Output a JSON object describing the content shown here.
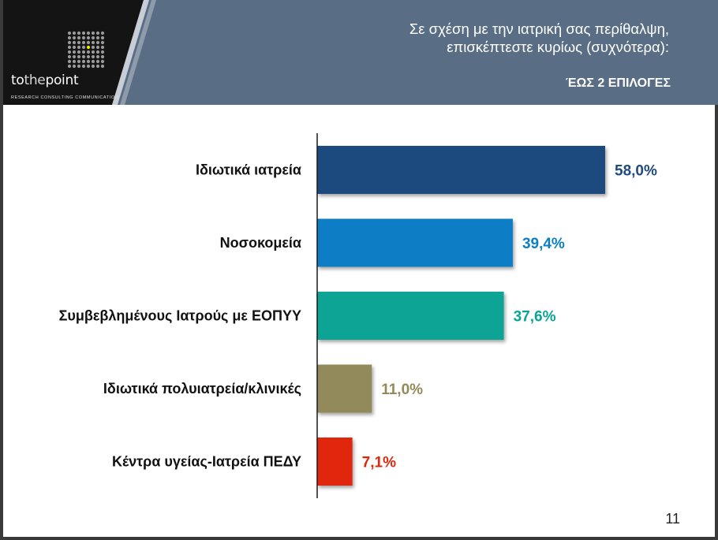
{
  "header": {
    "title_line1": "Σε σχέση με την ιατρική σας περίθαλψη,",
    "title_line2": "επισκέπτεστε κυρίως (συχνότερα):",
    "note": "ΈΩΣ 2 ΕΠΙΛΟΓΕΣ"
  },
  "logo": {
    "part1": "to",
    "part2": "the",
    "part3": "point",
    "tagline": "RESEARCH  CONSULTING  COMMUNICATION"
  },
  "colors": {
    "header_bg": "#596d85",
    "accent_dot": "#f2e600"
  },
  "chart_data": {
    "type": "bar",
    "orientation": "horizontal",
    "categories": [
      "Ιδιωτικά ιατρεία",
      "Νοσοκομεία",
      "Συμβεβλημένους Ιατρούς με ΕΟΠΥΥ",
      "Ιδιωτικά πολυιατρεία/κλινικές",
      "Κέντρα υγείας-Ιατρεία ΠΕΔΥ"
    ],
    "values": [
      58.0,
      39.4,
      37.6,
      11.0,
      7.1
    ],
    "value_labels": [
      "58,0%",
      "39,4%",
      "37,6%",
      "11,0%",
      "7,1%"
    ],
    "colors": [
      "#1f4a7e",
      "#0c7ec6",
      "#0aa395",
      "#928a5a",
      "#e0260c"
    ],
    "xlim": [
      0,
      60
    ],
    "grid": false,
    "legend": "none"
  },
  "page_number": "11"
}
